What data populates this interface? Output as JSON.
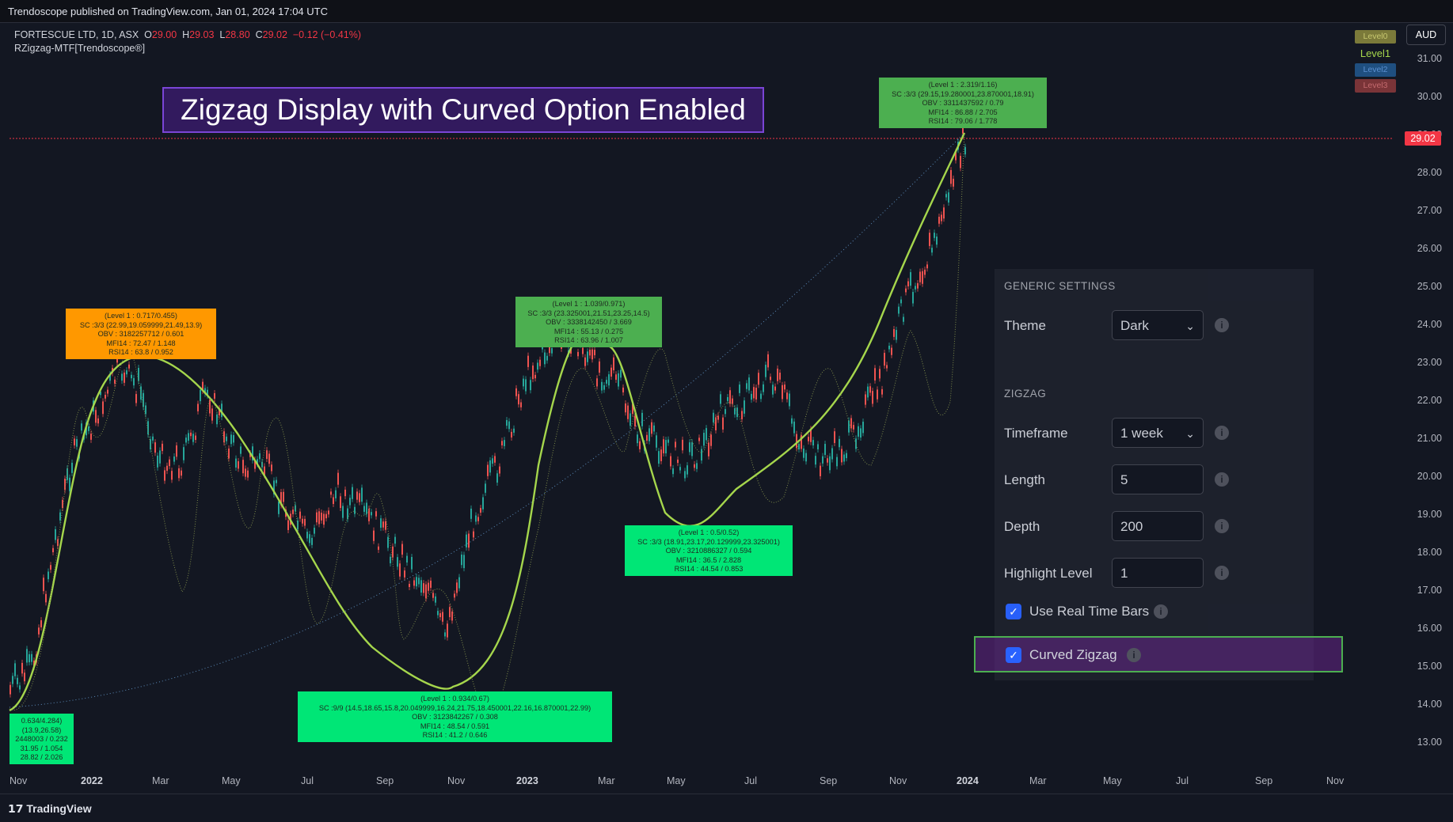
{
  "header": {
    "published": "Trendoscope published on TradingView.com, Jan 01, 2024 17:04 UTC"
  },
  "legend": {
    "symbol": "FORTESCUE LTD, 1D, ASX",
    "ohlc": {
      "o_label": "O",
      "o": "29.00",
      "h_label": "H",
      "h": "29.03",
      "l_label": "L",
      "l": "28.80",
      "c_label": "C",
      "c": "29.02",
      "change": "−0.12 (−0.41%)"
    },
    "indicator": "RZigzag-MTF[Trendoscope®]"
  },
  "banner": {
    "title": "Zigzag Display with Curved Option Enabled"
  },
  "currency_button": "AUD",
  "levels": [
    "Level0",
    "Level1",
    "Level2",
    "Level3"
  ],
  "price_axis": {
    "labels": [
      "31.00",
      "30.00",
      "29.00",
      "28.00",
      "27.00",
      "26.00",
      "25.00",
      "24.00",
      "23.00",
      "22.00",
      "21.00",
      "20.00",
      "19.00",
      "18.00",
      "17.00",
      "16.00",
      "15.00",
      "14.00",
      "13.00"
    ],
    "last_price": "29.02"
  },
  "time_axis": {
    "labels": [
      {
        "text": "Nov",
        "bold": false
      },
      {
        "text": "2022",
        "bold": true
      },
      {
        "text": "Mar",
        "bold": false
      },
      {
        "text": "May",
        "bold": false
      },
      {
        "text": "Jul",
        "bold": false
      },
      {
        "text": "Sep",
        "bold": false
      },
      {
        "text": "Nov",
        "bold": false
      },
      {
        "text": "2023",
        "bold": true
      },
      {
        "text": "Mar",
        "bold": false
      },
      {
        "text": "May",
        "bold": false
      },
      {
        "text": "Jul",
        "bold": false
      },
      {
        "text": "Sep",
        "bold": false
      },
      {
        "text": "Nov",
        "bold": false
      },
      {
        "text": "2024",
        "bold": true
      },
      {
        "text": "Mar",
        "bold": false
      },
      {
        "text": "May",
        "bold": false
      },
      {
        "text": "Jul",
        "bold": false
      },
      {
        "text": "Sep",
        "bold": false
      },
      {
        "text": "Nov",
        "bold": false
      }
    ]
  },
  "pivots": [
    {
      "color": "#00e676",
      "lines": [
        "0.634/4.284)",
        "(13.9,26.58)",
        "2448003 / 0.232",
        "31.95 / 1.054",
        "28.82 / 2.026"
      ]
    },
    {
      "color": "#ff9800",
      "lines": [
        "(Level 1 : 0.717/0.455)",
        "SC :3/3 (22.99,19.059999,21.49,13.9)",
        "OBV : 3182257712 / 0.601",
        "MFI14 : 72.47 / 1.148",
        "RSI14 : 63.8 / 0.952"
      ]
    },
    {
      "color": "#00e676",
      "lines": [
        "(Level 1 : 0.934/0.67)",
        "SC :9/9 (14.5,18.65,15.8,20.049999,16.24,21.75,18.450001,22.16,16.870001,22.99)",
        "OBV : 3123842267 / 0.308",
        "MFI14 : 48.54 / 0.591",
        "RSI14 : 41.2 / 0.646"
      ]
    },
    {
      "color": "#4caf50",
      "lines": [
        "(Level 1 : 1.039/0.971)",
        "SC :3/3 (23.325001,21.51,23.25,14.5)",
        "OBV : 3338142450 / 3.669",
        "MFI14 : 55.13 / 0.275",
        "RSI14 : 63.96 / 1.007"
      ]
    },
    {
      "color": "#00e676",
      "lines": [
        "(Level 1 : 0.5/0.52)",
        "SC :3/3 (18.91,23.17,20.129999,23.325001)",
        "OBV : 3210886327 / 0.594",
        "MFI14 : 36.5 / 2.828",
        "RSI14 : 44.54 / 0.853"
      ]
    },
    {
      "color": "#4caf50",
      "lines": [
        "(Level 1 : 2.319/1.16)",
        "SC :3/3 (29.15,19.280001,23.870001,18.91)",
        "OBV : 3311437592 / 0.79",
        "MFI14 : 86.88 / 2.705",
        "RSI14 : 79.06 / 1.778"
      ]
    }
  ],
  "settings": {
    "generic_header": "GENERIC SETTINGS",
    "theme_label": "Theme",
    "theme_value": "Dark",
    "zigzag_header": "ZIGZAG",
    "timeframe_label": "Timeframe",
    "timeframe_value": "1 week",
    "length_label": "Length",
    "length_value": "5",
    "depth_label": "Depth",
    "depth_value": "200",
    "highlight_label": "Highlight Level",
    "highlight_value": "1",
    "realtime_label": "Use Real Time Bars",
    "curved_label": "Curved Zigzag"
  },
  "footer": {
    "brand": "TradingView"
  },
  "colors": {
    "background": "#131722",
    "zigzag": "#a5d64c",
    "up": "#26a69a",
    "down": "#ef5350",
    "accent": "#2962ff"
  }
}
